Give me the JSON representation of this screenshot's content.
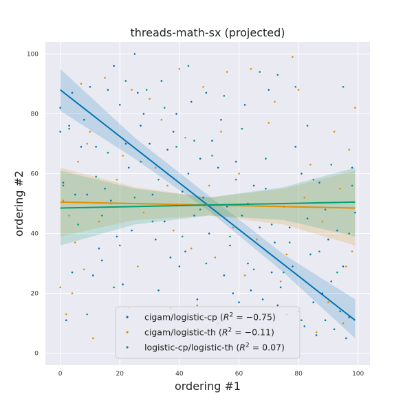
{
  "chart_data": {
    "type": "scatter",
    "title": "threads-math-sx (projected)",
    "xlabel": "ordering #1",
    "ylabel": "ordering #2",
    "xlim": [
      -5,
      104
    ],
    "ylim": [
      -4,
      104
    ],
    "xticks": [
      0,
      20,
      40,
      60,
      80,
      100
    ],
    "yticks": [
      0,
      20,
      40,
      60,
      80,
      100
    ],
    "grid": true,
    "background": "#eaeaf2",
    "legend_position": "lower-center",
    "series": [
      {
        "label_prefix": "cigam/logistic-cp (",
        "label_r2": "R",
        "label_r2_value": " = −0.75)",
        "color": "#0173b2",
        "fit": {
          "x": [
            0,
            99
          ],
          "y": [
            88,
            11
          ]
        },
        "band": {
          "x": [
            0,
            25,
            50,
            75,
            99
          ],
          "upper": [
            95,
            72,
            52.5,
            33,
            18
          ],
          "lower": [
            81,
            65,
            47.5,
            27,
            5
          ]
        },
        "points": [
          [
            0,
            82
          ],
          [
            0,
            74
          ],
          [
            1,
            57
          ],
          [
            2,
            11
          ],
          [
            3,
            76
          ],
          [
            4,
            87
          ],
          [
            4,
            27
          ],
          [
            5,
            53
          ],
          [
            7,
            69
          ],
          [
            8,
            78
          ],
          [
            9,
            53
          ],
          [
            10,
            89
          ],
          [
            11,
            26
          ],
          [
            12,
            69
          ],
          [
            13,
            35
          ],
          [
            14,
            31
          ],
          [
            15,
            55
          ],
          [
            16,
            88
          ],
          [
            17,
            51
          ],
          [
            18,
            96
          ],
          [
            19,
            39
          ],
          [
            20,
            83
          ],
          [
            21,
            23
          ],
          [
            22,
            70
          ],
          [
            23,
            62
          ],
          [
            24,
            41
          ],
          [
            25,
            100
          ],
          [
            26,
            87
          ],
          [
            27,
            76
          ],
          [
            28,
            80
          ],
          [
            30,
            70
          ],
          [
            31,
            53
          ],
          [
            32,
            38
          ],
          [
            33,
            21
          ],
          [
            34,
            91
          ],
          [
            35,
            44
          ],
          [
            36,
            68
          ],
          [
            37,
            32
          ],
          [
            38,
            74
          ],
          [
            39,
            80
          ],
          [
            40,
            29
          ],
          [
            41,
            54
          ],
          [
            42,
            34
          ],
          [
            43,
            60
          ],
          [
            44,
            84
          ],
          [
            45,
            46
          ],
          [
            46,
            18
          ],
          [
            47,
            65
          ],
          [
            48,
            52
          ],
          [
            49,
            87
          ],
          [
            50,
            40
          ],
          [
            51,
            71
          ],
          [
            52,
            12
          ],
          [
            53,
            62
          ],
          [
            54,
            78
          ],
          [
            55,
            26
          ],
          [
            56,
            49
          ],
          [
            57,
            36
          ],
          [
            58,
            20
          ],
          [
            59,
            64
          ],
          [
            60,
            17
          ],
          [
            61,
            46
          ],
          [
            62,
            83
          ],
          [
            63,
            30
          ],
          [
            64,
            21
          ],
          [
            65,
            56
          ],
          [
            66,
            11
          ],
          [
            67,
            42
          ],
          [
            68,
            18
          ],
          [
            69,
            55
          ],
          [
            70,
            88
          ],
          [
            71,
            27
          ],
          [
            72,
            37
          ],
          [
            73,
            16
          ],
          [
            74,
            22
          ],
          [
            75,
            49
          ],
          [
            76,
            13
          ],
          [
            77,
            42
          ],
          [
            78,
            29
          ],
          [
            79,
            69
          ],
          [
            80,
            14
          ],
          [
            81,
            60
          ],
          [
            82,
            9
          ],
          [
            83,
            45
          ],
          [
            84,
            33
          ],
          [
            85,
            17
          ],
          [
            86,
            6
          ],
          [
            87,
            57
          ],
          [
            88,
            20
          ],
          [
            89,
            11
          ],
          [
            90,
            38
          ],
          [
            91,
            24
          ],
          [
            92,
            8
          ],
          [
            93,
            41
          ],
          [
            94,
            14
          ],
          [
            95,
            29
          ],
          [
            96,
            5
          ],
          [
            97,
            12
          ],
          [
            98,
            62
          ],
          [
            99,
            47
          ]
        ]
      },
      {
        "label_prefix": "cigam/logistic-th (",
        "label_r2": "R",
        "label_r2_value": " = −0.11)",
        "color": "#de8f05",
        "fit": {
          "x": [
            0,
            99
          ],
          "y": [
            50.5,
            48.5
          ]
        },
        "band": {
          "x": [
            0,
            25,
            50,
            75,
            99
          ],
          "upper": [
            62,
            55.5,
            52,
            55,
            61
          ],
          "lower": [
            39,
            44.5,
            46,
            43,
            36
          ]
        },
        "points": [
          [
            0,
            22
          ],
          [
            1,
            51
          ],
          [
            2,
            13
          ],
          [
            3,
            46
          ],
          [
            4,
            20
          ],
          [
            5,
            37
          ],
          [
            6,
            64
          ],
          [
            7,
            90
          ],
          [
            8,
            28
          ],
          [
            9,
            70
          ],
          [
            10,
            74
          ],
          [
            11,
            5
          ],
          [
            13,
            44
          ],
          [
            15,
            92
          ],
          [
            17,
            50
          ],
          [
            19,
            58
          ],
          [
            21,
            66
          ],
          [
            23,
            15
          ],
          [
            24,
            88
          ],
          [
            26,
            29
          ],
          [
            28,
            47
          ],
          [
            30,
            85
          ],
          [
            32,
            62
          ],
          [
            34,
            78
          ],
          [
            36,
            56
          ],
          [
            38,
            41
          ],
          [
            40,
            95
          ],
          [
            42,
            72
          ],
          [
            44,
            35
          ],
          [
            46,
            16
          ],
          [
            48,
            89
          ],
          [
            50,
            56
          ],
          [
            52,
            32
          ],
          [
            54,
            74
          ],
          [
            56,
            94
          ],
          [
            58,
            42
          ],
          [
            60,
            60
          ],
          [
            62,
            26
          ],
          [
            64,
            95
          ],
          [
            66,
            38
          ],
          [
            68,
            8
          ],
          [
            70,
            77
          ],
          [
            72,
            84
          ],
          [
            74,
            24
          ],
          [
            76,
            33
          ],
          [
            78,
            99
          ],
          [
            80,
            88
          ],
          [
            82,
            52
          ],
          [
            84,
            63
          ],
          [
            86,
            7
          ],
          [
            88,
            44
          ],
          [
            90,
            17
          ],
          [
            92,
            74
          ],
          [
            94,
            55
          ],
          [
            95,
            10
          ],
          [
            96,
            29
          ],
          [
            97,
            68
          ],
          [
            98,
            34
          ],
          [
            99,
            82
          ]
        ]
      },
      {
        "label_prefix": "logistic-cp/logistic-th (",
        "label_r2": "R",
        "label_r2_value": " = 0.07)",
        "color": "#029e73",
        "fit": {
          "x": [
            0,
            99
          ],
          "y": [
            48.5,
            50.5
          ]
        },
        "band": {
          "x": [
            0,
            25,
            50,
            75,
            99
          ],
          "upper": [
            61,
            55,
            52,
            55.5,
            62
          ],
          "lower": [
            36,
            43,
            46,
            44.5,
            39
          ]
        },
        "points": [
          [
            1,
            56
          ],
          [
            3,
            75
          ],
          [
            6,
            43
          ],
          [
            9,
            13
          ],
          [
            12,
            59
          ],
          [
            14,
            46
          ],
          [
            16,
            67
          ],
          [
            18,
            22
          ],
          [
            20,
            36
          ],
          [
            22,
            91
          ],
          [
            25,
            52
          ],
          [
            27,
            64
          ],
          [
            29,
            88
          ],
          [
            31,
            44
          ],
          [
            33,
            58
          ],
          [
            35,
            82
          ],
          [
            37,
            15
          ],
          [
            39,
            69
          ],
          [
            41,
            39
          ],
          [
            43,
            96
          ],
          [
            45,
            71
          ],
          [
            47,
            48
          ],
          [
            49,
            30
          ],
          [
            51,
            66
          ],
          [
            53,
            10
          ],
          [
            55,
            86
          ],
          [
            57,
            39
          ],
          [
            59,
            58
          ],
          [
            61,
            75
          ],
          [
            63,
            50
          ],
          [
            65,
            28
          ],
          [
            67,
            94
          ],
          [
            69,
            65
          ],
          [
            71,
            43
          ],
          [
            73,
            93
          ],
          [
            75,
            27
          ],
          [
            77,
            37
          ],
          [
            79,
            89
          ],
          [
            81,
            11
          ],
          [
            83,
            76
          ],
          [
            85,
            58
          ],
          [
            87,
            34
          ],
          [
            89,
            48
          ],
          [
            91,
            63
          ],
          [
            93,
            27
          ],
          [
            95,
            89
          ],
          [
            97,
            40
          ],
          [
            98,
            56
          ]
        ]
      }
    ]
  }
}
